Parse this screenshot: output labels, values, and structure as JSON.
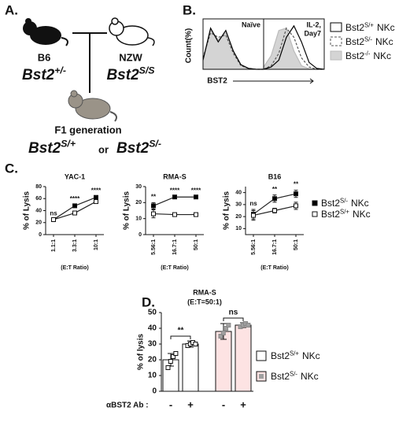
{
  "panels": {
    "a": "A.",
    "b": "B.",
    "c": "C.",
    "d": "D."
  },
  "panel_a": {
    "left": {
      "strain": "B6",
      "genotype": {
        "gene": "Bst2",
        "genotype": "+/-"
      }
    },
    "right": {
      "strain": "NZW",
      "genotype": {
        "gene": "Bst2",
        "genotype": "S/S"
      }
    },
    "offspring": "F1 generation",
    "offspring_genotypes": {
      "left": {
        "gene": "Bst2",
        "genotype": "S/+"
      },
      "joiner": "or",
      "right": {
        "gene": "Bst2",
        "genotype": "S/-"
      }
    }
  },
  "panel_b": {
    "ylabel": "Count(%)",
    "xlabel": "BST2"
  },
  "chart_data": [
    {
      "type": "density",
      "label": [
        "Naïve"
      ],
      "log_x": true,
      "xlim": [
        1,
        10000
      ],
      "ylim": [
        0,
        100
      ],
      "x": [
        1,
        3.16,
        10,
        31.6,
        100,
        316,
        1000,
        3160,
        10000
      ],
      "series": [
        {
          "name": {
            "gene": "Bst2",
            "genotype": "S/+",
            "suffix": "NKc"
          },
          "color": "#000000",
          "values": [
            20,
            90,
            60,
            85,
            40,
            10,
            2,
            0,
            0
          ]
        },
        {
          "name": {
            "gene": "Bst2",
            "genotype": "S/-",
            "suffix": "NKc"
          },
          "color": "#555555",
          "dash": true,
          "values": [
            25,
            80,
            70,
            75,
            35,
            8,
            2,
            0,
            0
          ]
        },
        {
          "name": {
            "gene": "Bst2",
            "genotype": "-/-",
            "suffix": "NKc"
          },
          "color": "#d4d4d4",
          "fill": true,
          "values": [
            20,
            85,
            65,
            80,
            38,
            9,
            1,
            0,
            0
          ]
        }
      ]
    },
    {
      "type": "density",
      "label": [
        "IL-2,",
        "Day7"
      ],
      "log_x": true,
      "xlim": [
        1,
        10000
      ],
      "ylim": [
        0,
        100
      ],
      "x": [
        1,
        3.16,
        10,
        31.6,
        100,
        316,
        1000,
        3160,
        10000
      ],
      "series": [
        {
          "color": "#000000",
          "values": [
            0,
            5,
            20,
            70,
            95,
            60,
            15,
            2,
            0
          ]
        },
        {
          "color": "#555555",
          "dash": true,
          "values": [
            0,
            8,
            35,
            90,
            70,
            25,
            5,
            0,
            0
          ]
        },
        {
          "color": "#d4d4d4",
          "fill": true,
          "values": [
            5,
            30,
            85,
            90,
            40,
            8,
            1,
            0,
            0
          ]
        }
      ]
    },
    {
      "type": "line",
      "title": "YAC-1",
      "ylabel": "% of Lysis",
      "xlabel": "(E:T Ratio)",
      "categories": [
        "1.1:1",
        "3.3:1",
        "10:1"
      ],
      "ylim": [
        0,
        80
      ],
      "yticks": [
        0,
        20,
        40,
        60,
        80
      ],
      "annotations": [
        "ns",
        "****",
        "****"
      ],
      "series": [
        {
          "name": {
            "gene": "Bst2",
            "genotype": "S/-",
            "suffix": "NKc"
          },
          "color": "#000000",
          "values": [
            25,
            48,
            62
          ],
          "errors": [
            1,
            2,
            2
          ]
        },
        {
          "name": {
            "gene": "Bst2",
            "genotype": "S/+",
            "suffix": "NKc"
          },
          "color": "#ffffff",
          "values": [
            25,
            36,
            55
          ],
          "errors": [
            1,
            3,
            3
          ]
        }
      ]
    },
    {
      "type": "line",
      "title": "RMA-S",
      "ylabel": "% of Lysis",
      "xlabel": "(E:T Ratio)",
      "categories": [
        "5.56:1",
        "16.7:1",
        "50:1"
      ],
      "ylim": [
        0,
        30
      ],
      "yticks": [
        0,
        10,
        20,
        30
      ],
      "annotations": [
        "**",
        "****",
        "****"
      ],
      "series": [
        {
          "color": "#000000",
          "values": [
            18,
            23.5,
            23.5
          ],
          "errors": [
            2,
            0.5,
            0.5
          ]
        },
        {
          "color": "#ffffff",
          "values": [
            13,
            12.5,
            12.5
          ],
          "errors": [
            2.5,
            1,
            1
          ]
        }
      ]
    },
    {
      "type": "line",
      "title": "B16",
      "ylabel": "% of Lysis",
      "xlabel": "(E:T Ratio)",
      "categories": [
        "5.56:1",
        "16.7:1",
        "50:1"
      ],
      "ylim": [
        5,
        45
      ],
      "yticks": [
        10,
        20,
        30,
        40
      ],
      "annotations": [
        "ns",
        "**",
        "**"
      ],
      "series": [
        {
          "color": "#000000",
          "values": [
            22,
            35,
            39
          ],
          "errors": [
            4,
            3,
            3
          ]
        },
        {
          "color": "#ffffff",
          "values": [
            21,
            25,
            29
          ],
          "errors": [
            4,
            2,
            3
          ]
        }
      ]
    },
    {
      "type": "bar",
      "title": "RMA-S",
      "subtitle": "(E:T=50:1)",
      "ylabel": "% of lysis",
      "category_axis_label": "αBST2 Ab :",
      "categories": [
        "-",
        "+",
        "-",
        "+"
      ],
      "ylim": [
        0,
        50
      ],
      "yticks": [
        0,
        10,
        20,
        30,
        40,
        50
      ],
      "values": [
        20,
        30,
        38,
        42
      ],
      "errors": [
        4,
        2,
        5,
        1.5
      ],
      "colors": [
        "#ffffff",
        "#ffffff",
        "#fde3e3",
        "#fde3e3"
      ],
      "point_colors": [
        "#ffffff",
        "#ffffff",
        "#a0a0a0",
        "#a0a0a0"
      ],
      "points": [
        [
          15,
          19,
          22,
          24
        ],
        [
          29,
          30,
          31,
          30
        ],
        [
          35,
          37,
          40,
          42
        ],
        [
          41,
          42,
          43,
          42
        ]
      ],
      "annotations": [
        "**",
        "ns"
      ],
      "series": [
        {
          "name": {
            "gene": "Bst2",
            "genotype": "S/+",
            "suffix": "NKc"
          },
          "color": "#ffffff"
        },
        {
          "name": {
            "gene": "Bst2",
            "genotype": "S/-",
            "suffix": "NKc"
          },
          "color": "#fde3e3"
        }
      ]
    }
  ]
}
